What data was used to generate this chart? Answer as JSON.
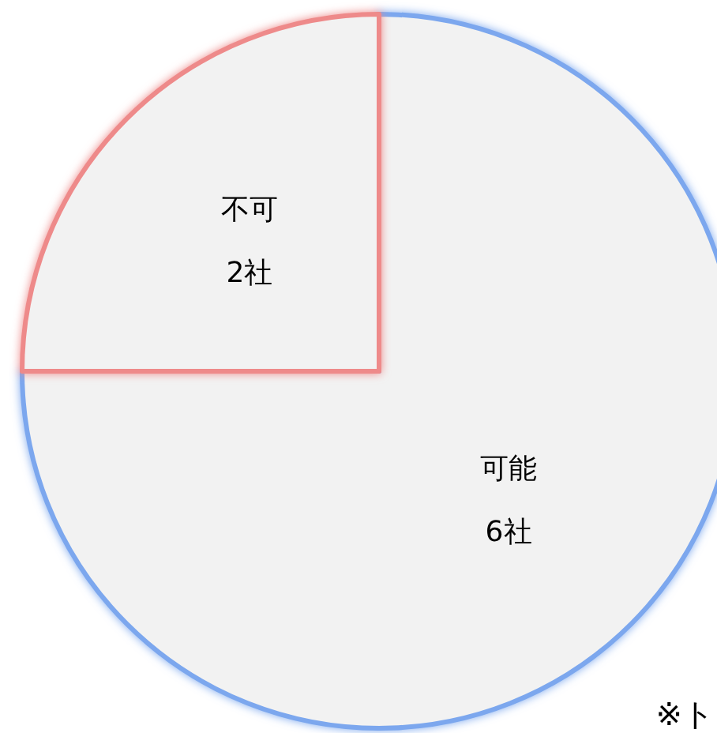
{
  "chart_data": {
    "type": "pie",
    "categories": [
      "可能",
      "不可"
    ],
    "values": [
      6,
      2
    ],
    "colors": [
      "#7ba7ee",
      "#ee8a8a"
    ],
    "value_labels": [
      "6社",
      "2社"
    ],
    "annotations": [
      "※ト"
    ]
  }
}
